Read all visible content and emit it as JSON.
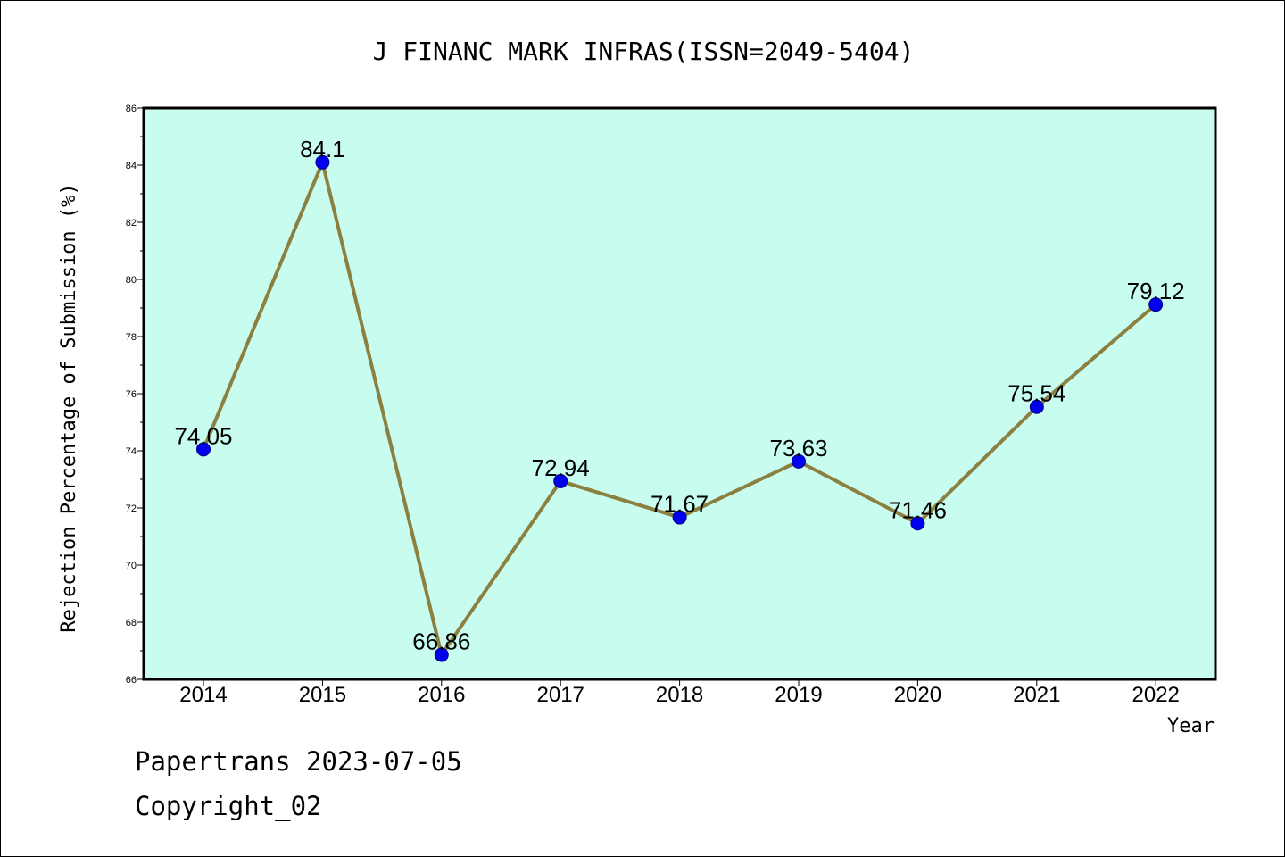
{
  "chart_data": {
    "type": "line",
    "title": "J FINANC MARK INFRAS(ISSN=2049-5404)",
    "xlabel": "Year",
    "ylabel": "Rejection Percentage of Submission (%)",
    "categories": [
      "2014",
      "2015",
      "2016",
      "2017",
      "2018",
      "2019",
      "2020",
      "2021",
      "2022"
    ],
    "series": [
      {
        "values": [
          74.05,
          84.1,
          66.86,
          72.94,
          71.67,
          73.63,
          71.46,
          75.54,
          79.12
        ],
        "labels": [
          "74.05",
          "84.1",
          "66.86",
          "72.94",
          "71.67",
          "73.63",
          "71.46",
          "75.54",
          "79.12"
        ]
      }
    ],
    "ylim": [
      66,
      86
    ],
    "yticks": [
      "66",
      "68",
      "70",
      "72",
      "74",
      "76",
      "78",
      "80",
      "82",
      "84",
      "86"
    ],
    "grid": false,
    "colors": {
      "plot_background": "#c8fcee",
      "line": "#8b8040",
      "marker": "#0000ee"
    }
  },
  "footer": {
    "line1": "Papertrans 2023-07-05",
    "line2": "Copyright_02"
  }
}
